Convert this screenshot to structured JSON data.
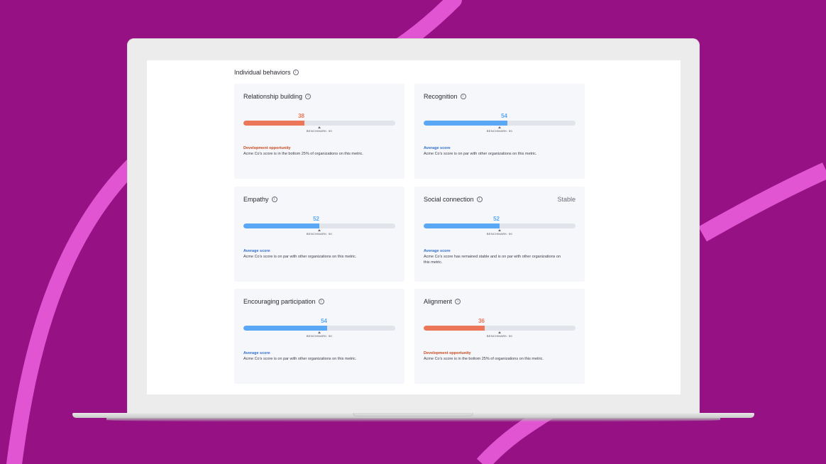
{
  "section": {
    "title": "Individual behaviors"
  },
  "colors": {
    "background": "#951184",
    "accent_pink": "#e255d2",
    "negative": "#ec7658",
    "neutral": "#5aa7f5",
    "development_text": "#c94b1f",
    "average_text": "#2f6fd0"
  },
  "icons": {
    "info": "info-icon"
  },
  "cards": [
    {
      "title": "Relationship building",
      "score": "38",
      "fill_fraction": 0.4,
      "status": "Development opportunity",
      "tone": "negative",
      "benchmark": "BENCHMARK: 50",
      "benchmark_fraction": 0.5,
      "description": "Acme Co's score is in the bottom 25% of organizations on this metric."
    },
    {
      "title": "Recognition",
      "score": "54",
      "fill_fraction": 0.55,
      "status": "Average score",
      "tone": "neutral",
      "benchmark": "BENCHMARK: 50",
      "benchmark_fraction": 0.5,
      "description": "Acme Co's score is on par with other organizations on this metric."
    },
    {
      "title": "Empathy",
      "score": "52",
      "fill_fraction": 0.5,
      "status": "Average score",
      "tone": "neutral",
      "benchmark": "BENCHMARK: 50",
      "benchmark_fraction": 0.5,
      "description": "Acme Co's score is on par with other organizations on this metric."
    },
    {
      "title": "Social connection",
      "trend": "Stable",
      "score": "52",
      "fill_fraction": 0.5,
      "status": "Average score",
      "tone": "neutral",
      "benchmark": "BENCHMARK: 50",
      "benchmark_fraction": 0.5,
      "description": "Acme Co's score has remained stable and is on par with other organizations on this metric."
    },
    {
      "title": "Encouraging participation",
      "score": "54",
      "fill_fraction": 0.55,
      "status": "Average score",
      "tone": "neutral",
      "benchmark": "BENCHMARK: 50",
      "benchmark_fraction": 0.5,
      "description": "Acme Co's score is on par with other organizations on this metric."
    },
    {
      "title": "Alignment",
      "score": "36",
      "fill_fraction": 0.4,
      "status": "Development opportunity",
      "tone": "negative",
      "benchmark": "BENCHMARK: 50",
      "benchmark_fraction": 0.5,
      "description": "Acme Co's score is in the bottom 25% of organizations on this metric."
    }
  ]
}
